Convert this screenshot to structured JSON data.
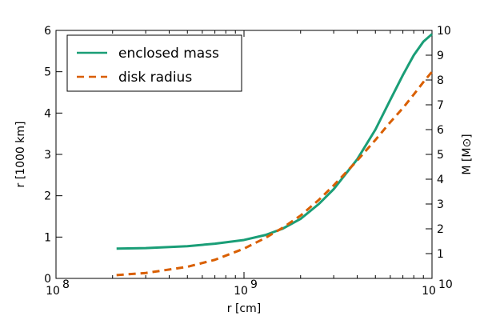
{
  "chart_data": {
    "type": "line",
    "xlabel": "r [cm]",
    "ylabel_left": "r [1000 km]",
    "ylabel_right": "M [M⊙]",
    "x_scale": "log",
    "xlim": [
      100000000,
      10000000000
    ],
    "ylim_left": [
      0,
      6
    ],
    "ylim_right": [
      0,
      10
    ],
    "x_ticks": [
      {
        "value": 100000000,
        "base": "10",
        "exp": "8"
      },
      {
        "value": 1000000000,
        "base": "10",
        "exp": "9"
      },
      {
        "value": 10000000000,
        "base": "10",
        "exp": "10"
      }
    ],
    "y_left_ticks": [
      0,
      1,
      2,
      3,
      4,
      5,
      6
    ],
    "y_right_ticks": [
      1,
      2,
      3,
      4,
      5,
      6,
      7,
      8,
      9,
      10
    ],
    "legend_location": "top-left",
    "series": [
      {
        "name": "enclosed mass",
        "axis": "right",
        "color": "#1a9e77",
        "style": "solid",
        "points": [
          [
            210000000,
            1.2
          ],
          [
            300000000,
            1.22
          ],
          [
            500000000,
            1.3
          ],
          [
            700000000,
            1.4
          ],
          [
            1000000000,
            1.55
          ],
          [
            1300000000,
            1.75
          ],
          [
            1600000000,
            2.0
          ],
          [
            2000000000,
            2.4
          ],
          [
            2500000000,
            3.0
          ],
          [
            3000000000,
            3.6
          ],
          [
            4000000000,
            4.8
          ],
          [
            5000000000,
            6.0
          ],
          [
            6000000000,
            7.2
          ],
          [
            7000000000,
            8.2
          ],
          [
            8000000000,
            9.0
          ],
          [
            9000000000,
            9.55
          ],
          [
            10000000000,
            9.85
          ]
        ]
      },
      {
        "name": "disk radius",
        "axis": "left",
        "color": "#d95f02",
        "style": "dashed",
        "points": [
          [
            210000000,
            0.08
          ],
          [
            300000000,
            0.13
          ],
          [
            500000000,
            0.28
          ],
          [
            700000000,
            0.45
          ],
          [
            1000000000,
            0.72
          ],
          [
            1300000000,
            0.98
          ],
          [
            1600000000,
            1.22
          ],
          [
            2000000000,
            1.52
          ],
          [
            2500000000,
            1.9
          ],
          [
            3000000000,
            2.25
          ],
          [
            4000000000,
            2.85
          ],
          [
            5000000000,
            3.35
          ],
          [
            6000000000,
            3.78
          ],
          [
            7000000000,
            4.12
          ],
          [
            8000000000,
            4.45
          ],
          [
            9000000000,
            4.75
          ],
          [
            10000000000,
            5.0
          ]
        ]
      }
    ]
  }
}
